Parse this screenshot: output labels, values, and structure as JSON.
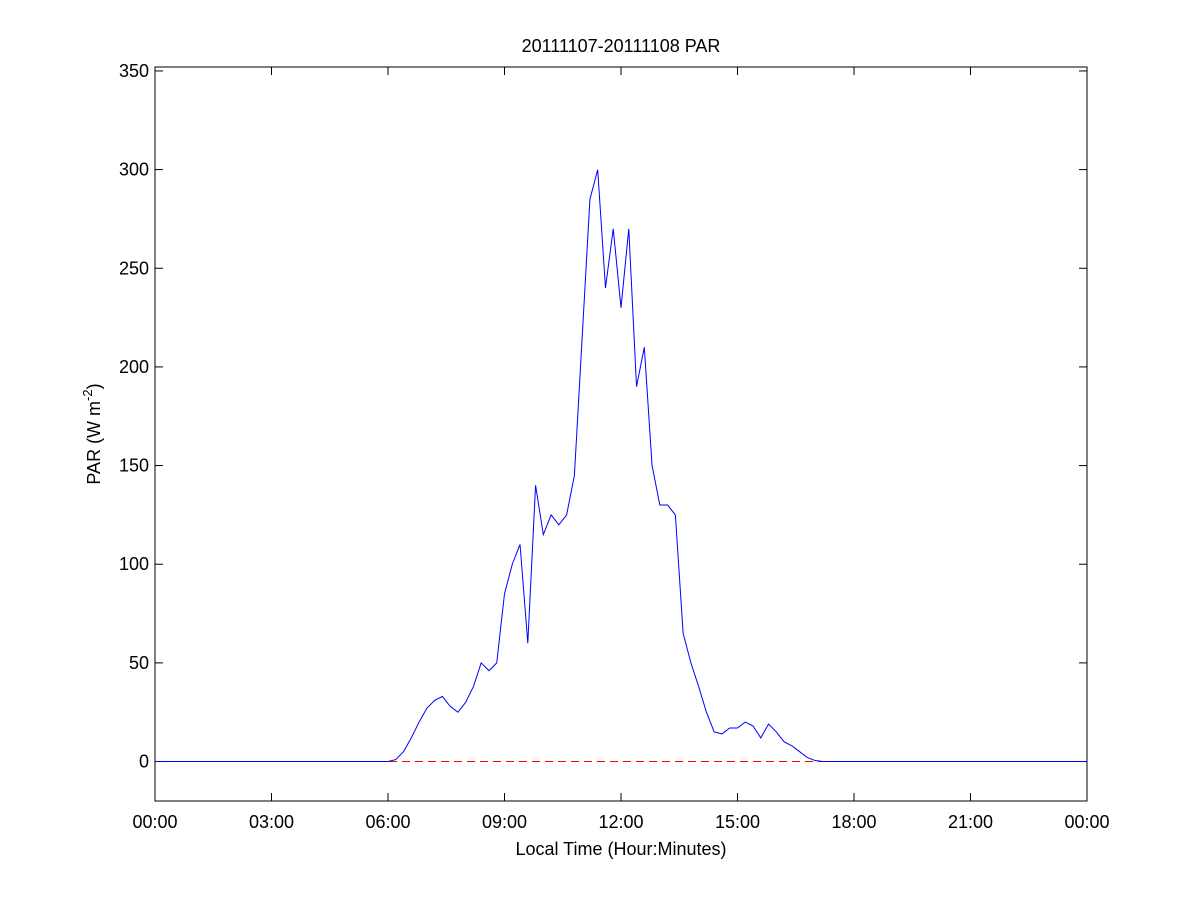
{
  "chart_data": {
    "type": "line",
    "title": "20111107-20111108 PAR",
    "x_label": "Local Time (Hour:Minutes)",
    "y_label": {
      "text": "PAR (W m",
      "superscript": "-2",
      "suffix": ")"
    },
    "x": [
      0,
      6.0,
      6.2,
      6.4,
      6.6,
      6.8,
      7.0,
      7.2,
      7.4,
      7.6,
      7.8,
      8.0,
      8.2,
      8.4,
      8.6,
      8.8,
      9.0,
      9.2,
      9.4,
      9.6,
      9.8,
      10.0,
      10.2,
      10.4,
      10.6,
      10.8,
      11.0,
      11.2,
      11.4,
      11.6,
      11.8,
      12.0,
      12.2,
      12.4,
      12.6,
      12.8,
      13.0,
      13.2,
      13.4,
      13.6,
      13.8,
      14.0,
      14.2,
      14.4,
      14.6,
      14.8,
      15.0,
      15.2,
      15.4,
      15.6,
      15.8,
      16.0,
      16.2,
      16.4,
      16.6,
      16.8,
      17.0,
      17.2,
      24
    ],
    "values": [
      0,
      0,
      1,
      5,
      12,
      20,
      27,
      31,
      33,
      28,
      25,
      30,
      38,
      50,
      46,
      50,
      85,
      100,
      110,
      60,
      140,
      115,
      125,
      120,
      125,
      145,
      215,
      285,
      300,
      240,
      270,
      230,
      270,
      190,
      210,
      150,
      130,
      130,
      125,
      65,
      50,
      38,
      25,
      15,
      14,
      17,
      17,
      20,
      18,
      12,
      19,
      15,
      10,
      8,
      5,
      2,
      0.5,
      0,
      0
    ],
    "color": "#0000ff",
    "reference_line": {
      "value": 0,
      "color": "#ff0000",
      "style": "dashed"
    },
    "xlim": [
      0,
      24
    ],
    "xticks": [
      {
        "value": 0,
        "label": "00:00"
      },
      {
        "value": 3,
        "label": "03:00"
      },
      {
        "value": 6,
        "label": "06:00"
      },
      {
        "value": 9,
        "label": "09:00"
      },
      {
        "value": 12,
        "label": "12:00"
      },
      {
        "value": 15,
        "label": "15:00"
      },
      {
        "value": 18,
        "label": "18:00"
      },
      {
        "value": 21,
        "label": "21:00"
      },
      {
        "value": 24,
        "label": "00:00"
      }
    ],
    "ylim": [
      -20,
      352
    ],
    "yticks": [
      0,
      50,
      100,
      150,
      200,
      250,
      300,
      350
    ],
    "grid": false
  }
}
